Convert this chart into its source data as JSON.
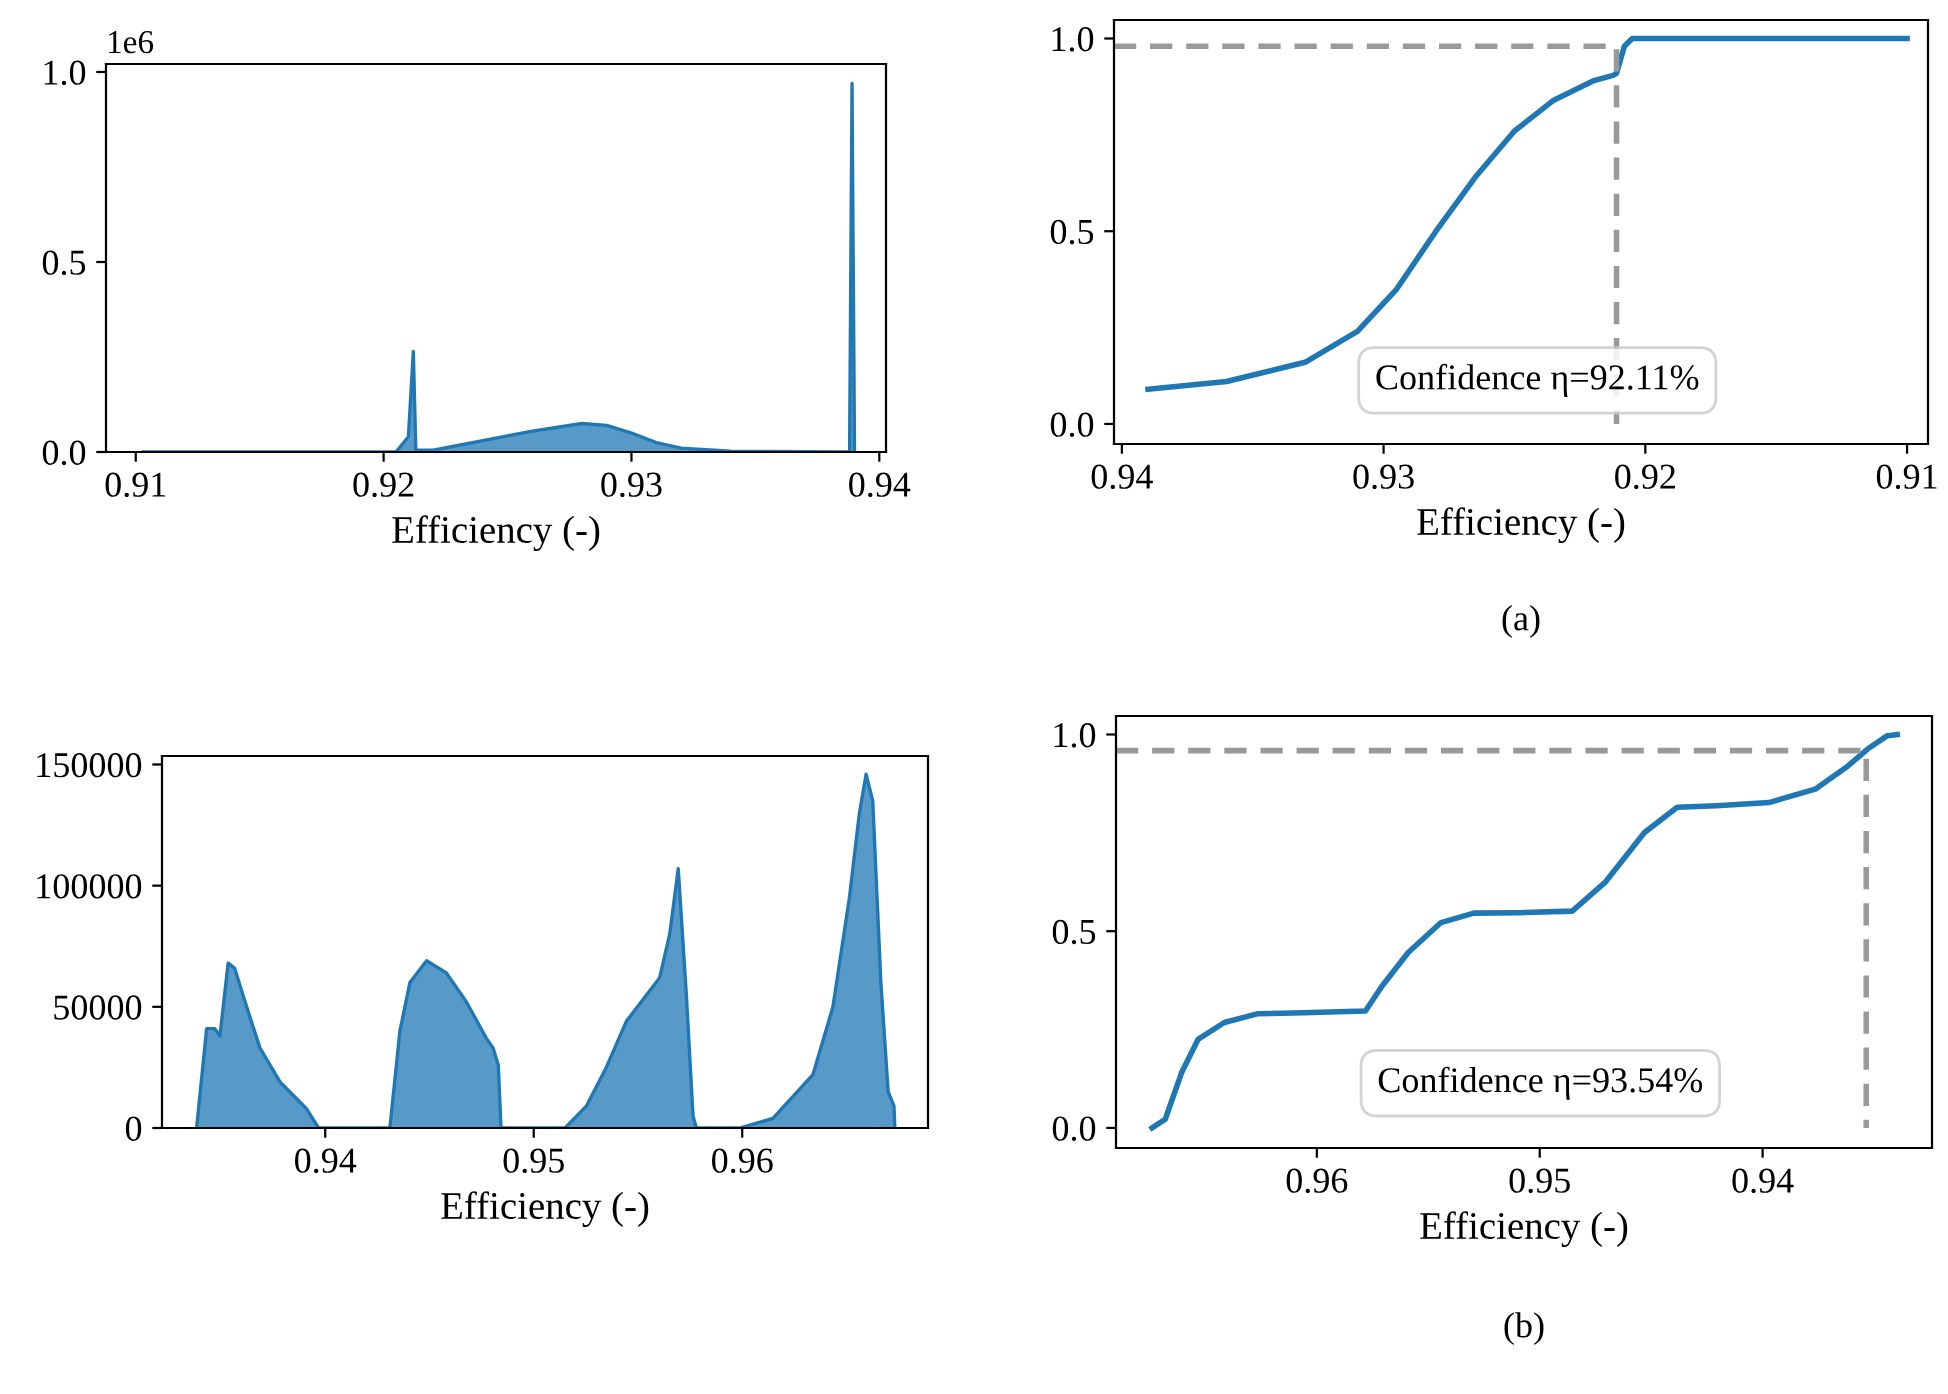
{
  "chart_data": [
    {
      "type": "area",
      "xlabel": "Efficiency (-)",
      "color": "#1f77b4",
      "x": [
        0.9103,
        0.915,
        0.9205,
        0.921,
        0.9212,
        0.9213,
        0.922,
        0.924,
        0.926,
        0.928,
        0.929,
        0.93,
        0.931,
        0.932,
        0.934,
        0.9388,
        0.9389,
        0.939
      ],
      "values": [
        0,
        0,
        0,
        0.04,
        0.265,
        0.005,
        0.005,
        0.03,
        0.055,
        0.075,
        0.07,
        0.05,
        0.025,
        0.01,
        0.002,
        0,
        0.97,
        0
      ],
      "xlim": [
        0.9088,
        0.94027
      ],
      "xticks": [
        0.91,
        0.92,
        0.93,
        0.94
      ],
      "ylim": [
        0,
        1.021
      ],
      "yticks": [
        {
          "value": 0,
          "label": "0.0"
        },
        {
          "value": 0.5,
          "label": "0.5"
        },
        {
          "value": 1,
          "label": "1.0"
        }
      ],
      "annotations": [
        "1e6"
      ]
    },
    {
      "type": "line",
      "xlabel": "Efficiency (-)",
      "series": [
        {
          "color": "#1f77b4",
          "x": [
            0.939,
            0.936,
            0.933,
            0.931,
            0.9295,
            0.928,
            0.9265,
            0.925,
            0.9235,
            0.922,
            0.9212,
            0.9211,
            0.9208,
            0.9205,
            0.91
          ],
          "values": [
            0.09,
            0.11,
            0.16,
            0.24,
            0.35,
            0.5,
            0.64,
            0.76,
            0.84,
            0.89,
            0.905,
            0.91,
            0.98,
            1.0,
            1.0
          ]
        },
        {
          "color": "#999999",
          "line_style": "dashed",
          "x": [
            0.9403,
            0.9211,
            0.9211
          ],
          "values": [
            0.98,
            0.98,
            0
          ]
        }
      ],
      "xlim": [
        0.9403,
        0.9092
      ],
      "xticks": [
        0.94,
        0.93,
        0.92,
        0.91
      ],
      "ylim": [
        -0.052,
        1.048
      ],
      "yticks": [
        {
          "value": 0,
          "label": "0.0"
        },
        {
          "value": 0.5,
          "label": "0.5"
        },
        {
          "value": 1,
          "label": "1.0"
        }
      ],
      "annotations": [
        "Confidence η=92.11%",
        "(a)"
      ]
    },
    {
      "type": "area",
      "xlabel": "Efficiency (-)",
      "color": "#1f77b4",
      "x": [
        0.93383,
        0.93431,
        0.9347,
        0.93495,
        0.93534,
        0.93565,
        0.93623,
        0.93687,
        0.93783,
        0.9391,
        0.93968,
        0.9431,
        0.94358,
        0.94406,
        0.94486,
        0.94581,
        0.94677,
        0.94773,
        0.94805,
        0.9483,
        0.94843,
        0.9515,
        0.95252,
        0.95348,
        0.95444,
        0.95524,
        0.95604,
        0.95652,
        0.95693,
        0.95732,
        0.95764,
        0.9578,
        0.95987,
        0.96147,
        0.96339,
        0.96435,
        0.96514,
        0.96562,
        0.96594,
        0.96626,
        0.96665,
        0.967,
        0.96728,
        0.96732
      ],
      "values": [
        0,
        41000,
        41000,
        38000,
        68000,
        66000,
        50000,
        33000,
        19000,
        8000,
        0,
        0,
        40000,
        60000,
        69000,
        64000,
        52000,
        37000,
        33000,
        26000,
        0,
        0,
        9000,
        25000,
        44000,
        53000,
        62000,
        80000,
        107000,
        55000,
        5000,
        0,
        0,
        4000,
        22000,
        50000,
        95000,
        130000,
        146000,
        135000,
        60000,
        15000,
        9000,
        0
      ],
      "xlim": [
        0.93217,
        0.96891
      ],
      "xticks": [
        0.94,
        0.95,
        0.96
      ],
      "ylim": [
        0,
        153500
      ],
      "yticks": [
        0,
        50000,
        100000,
        150000
      ]
    },
    {
      "type": "line",
      "xlabel": "Efficiency (-)",
      "series": [
        {
          "color": "#1f77b4",
          "x": [
            0.96739,
            0.9668,
            0.96607,
            0.96533,
            0.96415,
            0.96268,
            0.96062,
            0.95782,
            0.95708,
            0.9559,
            0.95443,
            0.95296,
            0.95091,
            0.94854,
            0.94707,
            0.9453,
            0.94383,
            0.94206,
            0.93971,
            0.93764,
            0.93617,
            0.93529,
            0.9344,
            0.93396
          ],
          "values": [
            0.0,
            0.022,
            0.14,
            0.225,
            0.268,
            0.29,
            0.293,
            0.297,
            0.36,
            0.446,
            0.522,
            0.546,
            0.547,
            0.551,
            0.624,
            0.751,
            0.815,
            0.819,
            0.827,
            0.861,
            0.92,
            0.963,
            0.997,
            1.0
          ]
        },
        {
          "color": "#999999",
          "line_style": "dashed",
          "x": [
            0.96901,
            0.93535,
            0.93535
          ],
          "values": [
            0.959,
            0.959,
            0
          ]
        }
      ],
      "xlim": [
        0.96901,
        0.9324
      ],
      "xticks": [
        0.96,
        0.95,
        0.94
      ],
      "ylim": [
        -0.051,
        1.047
      ],
      "yticks": [
        {
          "value": 0,
          "label": "0.0"
        },
        {
          "value": 0.5,
          "label": "0.5"
        },
        {
          "value": 1,
          "label": "1.0"
        }
      ],
      "annotations": [
        "Confidence η=93.54%",
        "(b)"
      ]
    }
  ]
}
